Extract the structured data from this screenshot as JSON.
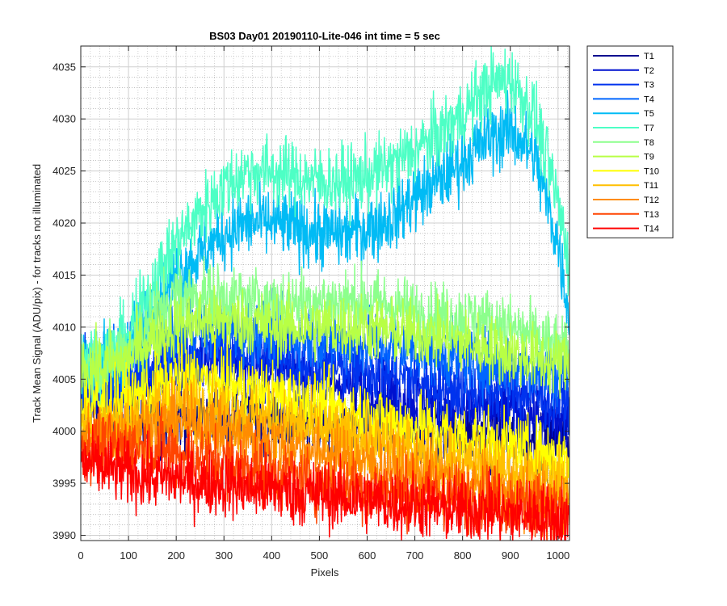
{
  "chart_data": {
    "type": "line",
    "title": "BS03 Day01 20190110-Lite-046 int time = 5 sec",
    "xlabel": "Pixels",
    "ylabel": "Track Mean Signal (ADU/pix) - for tracks not illuminated",
    "xlim": [
      0,
      1024
    ],
    "ylim": [
      3989.5,
      4037
    ],
    "xticks": [
      0,
      100,
      200,
      300,
      400,
      500,
      600,
      700,
      800,
      900,
      1000
    ],
    "yticks": [
      3990,
      3995,
      4000,
      4005,
      4010,
      4015,
      4020,
      4025,
      4030,
      4035
    ],
    "grid": "on (major and minor)",
    "legend": "outside-top-right",
    "x_knots": [
      0,
      50,
      100,
      150,
      200,
      250,
      300,
      350,
      400,
      450,
      500,
      550,
      600,
      650,
      700,
      750,
      800,
      850,
      900,
      950,
      1000,
      1024
    ],
    "series": [
      {
        "name": "T1",
        "color": "#00008f",
        "noise": 1.6,
        "values": [
          4003,
          4002,
          4001,
          4001,
          4001.5,
          4001.5,
          4001.5,
          4001.5,
          4001.5,
          4001,
          4001,
          4000.5,
          4000.5,
          4000.5,
          4000,
          4000,
          4000,
          3999.5,
          3999.5,
          3999,
          3999,
          3999
        ]
      },
      {
        "name": "T2",
        "color": "#0011cf",
        "noise": 1.6,
        "values": [
          4004,
          4004,
          4004,
          4005,
          4006,
          4006.5,
          4006.5,
          4006.5,
          4006,
          4005.5,
          4005,
          4004.5,
          4004,
          4003.5,
          4003,
          4002.5,
          4002,
          4002,
          4002,
          4001.5,
          4001,
          4001
        ]
      },
      {
        "name": "T3",
        "color": "#0033ee",
        "noise": 1.6,
        "values": [
          4005,
          4005,
          4005,
          4006,
          4007,
          4007.5,
          4007.5,
          4007.5,
          4007,
          4006.5,
          4006.5,
          4006,
          4006,
          4005.5,
          4005,
          4004.5,
          4004,
          4004,
          4004,
          4003.5,
          4003,
          4003
        ]
      },
      {
        "name": "T4",
        "color": "#0066ff",
        "noise": 1.6,
        "values": [
          4006,
          4006,
          4007,
          4008.5,
          4009.5,
          4010,
          4010,
          4009.5,
          4009.5,
          4009,
          4009,
          4008.5,
          4008.5,
          4008,
          4008,
          4007.5,
          4007,
          4006.5,
          4006.5,
          4006,
          4005.5,
          4005.5
        ]
      },
      {
        "name": "T5",
        "color": "#00bbf5",
        "noise": 1.7,
        "values": [
          4007,
          4007,
          4008,
          4012,
          4015,
          4017,
          4019,
          4020,
          4020,
          4019.5,
          4019,
          4019,
          4019.5,
          4020.5,
          4022.5,
          4024,
          4026,
          4028,
          4029,
          4026.5,
          4018,
          4011
        ]
      },
      {
        "name": "T7",
        "color": "#4dffc5",
        "noise": 1.7,
        "values": [
          4007,
          4007,
          4009,
          4014,
          4018,
          4021,
          4023.5,
          4025,
          4025,
          4024.5,
          4024,
          4024,
          4024.5,
          4025.5,
          4027,
          4028.5,
          4030.5,
          4033,
          4034,
          4030.5,
          4022,
          4016
        ]
      },
      {
        "name": "T8",
        "color": "#8cff8c",
        "noise": 1.6,
        "values": [
          4006.5,
          4006.5,
          4008,
          4011.5,
          4013,
          4013,
          4013,
          4012.5,
          4012.5,
          4012.5,
          4012.5,
          4012.5,
          4012.5,
          4012,
          4011.5,
          4011,
          4011,
          4010.5,
          4010,
          4009,
          4008,
          4007
        ]
      },
      {
        "name": "T9",
        "color": "#b8ff45",
        "noise": 1.6,
        "values": [
          4006,
          4006,
          4007,
          4009,
          4010,
          4010.5,
          4010.5,
          4010.5,
          4010,
          4010,
          4010,
          4010,
          4010,
          4009.5,
          4009.5,
          4009,
          4008.5,
          4008,
          4007.5,
          4007,
          4006.5,
          4006.5
        ]
      },
      {
        "name": "T10",
        "color": "#ffff00",
        "noise": 1.6,
        "values": [
          4002.5,
          4002.5,
          4003,
          4004,
          4005,
          4005,
          4004.5,
          4004,
          4003.5,
          4003,
          4002.5,
          4002,
          4001.5,
          4001,
          4000.5,
          4000,
          3999.5,
          3999,
          3998.5,
          3998,
          3997.5,
          3997.5
        ]
      },
      {
        "name": "T11",
        "color": "#ffbf00",
        "noise": 1.6,
        "values": [
          4000.5,
          4000.5,
          4001,
          4002,
          4002.5,
          4002.5,
          4002,
          4001.5,
          4001,
          4000.5,
          4000,
          3999.5,
          3999,
          3998.5,
          3998,
          3997.5,
          3997,
          3996.5,
          3996,
          3995.5,
          3995,
          3995
        ]
      },
      {
        "name": "T12",
        "color": "#ff8c00",
        "noise": 1.6,
        "values": [
          3999.5,
          3999.5,
          4000,
          4000.5,
          4001,
          4000.5,
          4000,
          3999.5,
          3999,
          3998.5,
          3998,
          3997.5,
          3997,
          3996.5,
          3996,
          3995.5,
          3995,
          3994.5,
          3994,
          3993.5,
          3993,
          3993
        ]
      },
      {
        "name": "T13",
        "color": "#ff4400",
        "noise": 1.6,
        "values": [
          3998.5,
          3998.5,
          3998.5,
          3998.5,
          3998,
          3997.5,
          3997,
          3996.5,
          3996,
          3995.5,
          3995,
          3995,
          3994.5,
          3994.5,
          3994,
          3994,
          3993.5,
          3993.5,
          3993,
          3993,
          3992.5,
          3992.5
        ]
      },
      {
        "name": "T14",
        "color": "#ff0000",
        "noise": 1.6,
        "values": [
          3997,
          3996.5,
          3996,
          3995.5,
          3995.5,
          3995,
          3995,
          3994.5,
          3994.5,
          3994,
          3994,
          3993.5,
          3993.5,
          3993,
          3993,
          3992.5,
          3992.5,
          3992.5,
          3992,
          3992,
          3991.5,
          3991.5
        ]
      }
    ]
  }
}
